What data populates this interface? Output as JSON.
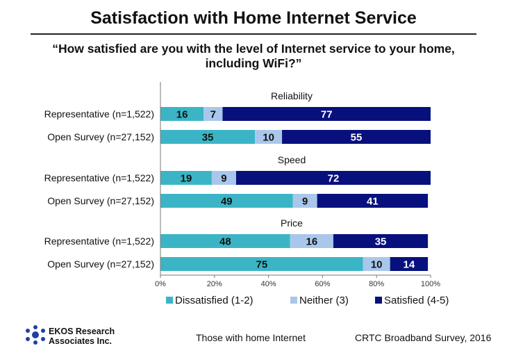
{
  "title": "Satisfaction with Home Internet Service",
  "subtitle_line1": "“How satisfied are you with the level of Internet service to your home,",
  "subtitle_line2": "including WiFi?”",
  "footer": {
    "org_line1": "EKOS Research",
    "org_line2": "Associates Inc.",
    "base": "Those with home Internet",
    "source": "CRTC Broadband Survey, 2016"
  },
  "colors": {
    "dissatisfied": "#3BB5C6",
    "neither": "#A9C7EA",
    "satisfied": "#07107C",
    "logo": "#1E3FA0"
  },
  "chart_data": {
    "type": "bar",
    "orientation": "horizontal",
    "stacked": true,
    "xlim": [
      0,
      100
    ],
    "xticks": [
      "0%",
      "20%",
      "40%",
      "60%",
      "80%",
      "100%"
    ],
    "grid": false,
    "legend_position": "bottom",
    "series_names": [
      "Dissatisfied (1-2)",
      "Neither (3)",
      "Satisfied (4-5)"
    ],
    "groups": [
      {
        "label": "Reliability",
        "rows": [
          {
            "label": "Representative (n=1,522)",
            "values": [
              16,
              7,
              77
            ]
          },
          {
            "label": "Open Survey (n=27,152)",
            "values": [
              35,
              10,
              55
            ]
          }
        ]
      },
      {
        "label": "Speed",
        "rows": [
          {
            "label": "Representative (n=1,522)",
            "values": [
              19,
              9,
              72
            ]
          },
          {
            "label": "Open Survey (n=27,152)",
            "values": [
              49,
              9,
              41
            ]
          }
        ]
      },
      {
        "label": "Price",
        "rows": [
          {
            "label": "Representative (n=1,522)",
            "values": [
              48,
              16,
              35
            ]
          },
          {
            "label": "Open Survey (n=27,152)",
            "values": [
              75,
              10,
              14
            ]
          }
        ]
      }
    ]
  }
}
